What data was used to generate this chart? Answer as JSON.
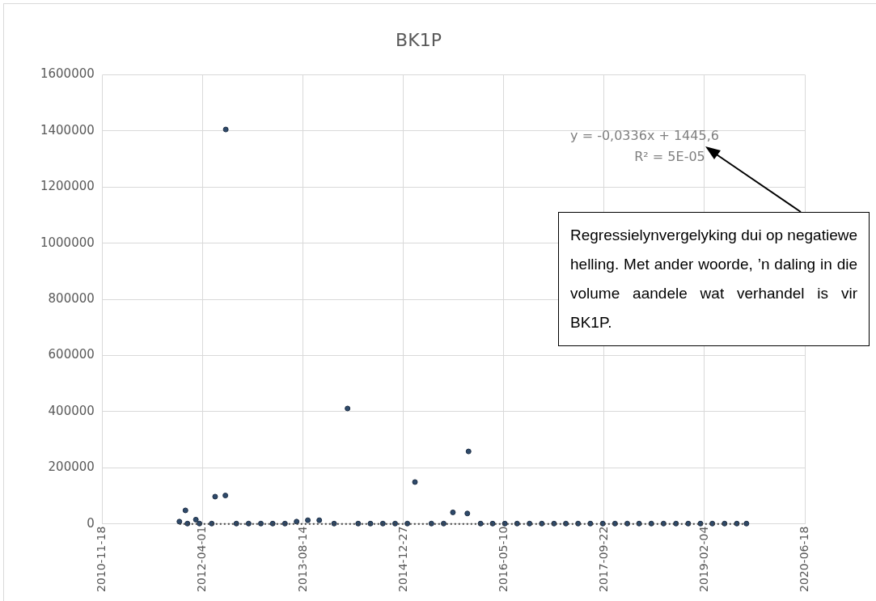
{
  "chart_data": {
    "type": "scatter",
    "title": "BK1P",
    "xlim": [
      "2010-11-18",
      "2020-06-18"
    ],
    "xticks": [
      "2010-11-18",
      "2012-04-01",
      "2013-08-14",
      "2014-12-27",
      "2016-05-10",
      "2017-09-22",
      "2019-02-04",
      "2020-06-18"
    ],
    "ylim": [
      0,
      1600000
    ],
    "yticks": [
      0,
      200000,
      400000,
      600000,
      800000,
      1000000,
      1200000,
      1400000,
      1600000
    ],
    "grid": true,
    "marker": "circle",
    "series": [
      {
        "color": "#2e4a6b",
        "x": [
          "2011-12-06",
          "2012-01-05",
          "2012-01-15",
          "2012-02-26",
          "2012-03-15",
          "2012-05-15",
          "2012-06-01",
          "2012-07-22",
          "2012-07-24",
          "2012-09-15",
          "2012-11-15",
          "2013-01-15",
          "2013-03-15",
          "2013-05-15",
          "2013-07-12",
          "2013-09-06",
          "2013-11-02",
          "2014-01-15",
          "2014-03-23",
          "2014-05-15",
          "2014-07-15",
          "2014-09-15",
          "2014-11-15",
          "2015-01-15",
          "2015-02-22",
          "2015-05-15",
          "2015-07-15",
          "2015-08-30",
          "2015-11-10",
          "2015-11-16",
          "2016-01-15",
          "2016-03-15",
          "2016-05-15",
          "2016-07-15",
          "2016-09-15",
          "2016-11-15",
          "2017-01-15",
          "2017-03-15",
          "2017-05-15",
          "2017-07-15",
          "2017-09-15",
          "2017-11-15",
          "2018-01-15",
          "2018-03-15",
          "2018-05-15",
          "2018-07-15",
          "2018-09-15",
          "2018-11-15",
          "2019-01-15",
          "2019-03-15",
          "2019-05-15",
          "2019-07-15",
          "2019-09-01"
        ],
        "values": [
          8000,
          48000,
          1000,
          15000,
          1000,
          1000,
          97000,
          101000,
          1405000,
          1000,
          1000,
          1000,
          1000,
          1000,
          8000,
          13000,
          13000,
          1000,
          411000,
          1000,
          1000,
          1000,
          1000,
          1000,
          149000,
          1000,
          1000,
          41000,
          37000,
          258000,
          1000,
          1000,
          1000,
          1000,
          1000,
          1000,
          1000,
          1000,
          1000,
          1000,
          1000,
          1000,
          1000,
          1000,
          1000,
          1000,
          1000,
          1000,
          1000,
          1000,
          1000,
          1000,
          1000
        ]
      },
      {
        "type": "line",
        "color": "#404040",
        "line_style": "dotted",
        "marker": "none",
        "x": [
          "2011-12-06",
          "2019-09-01"
        ],
        "values": [
          0,
          0
        ]
      }
    ],
    "annotations": [
      "y = -0,0336x + 1445,6",
      "R² = 5E-05",
      "Regressielynvergelyking dui op negatiewe helling. Met ander woorde, ’n daling in die volume aandele wat verhandel is vir BK1P."
    ]
  }
}
